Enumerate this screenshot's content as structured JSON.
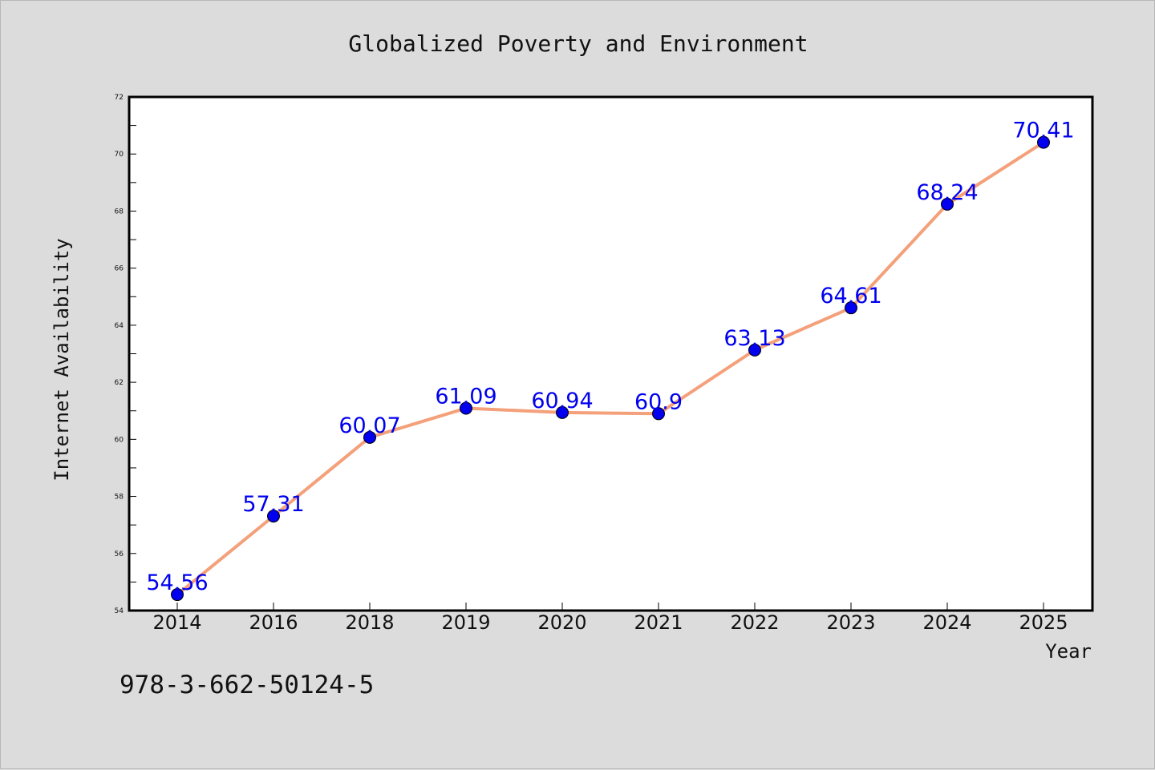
{
  "chart_data": {
    "type": "line",
    "title": "Globalized Poverty and Environment",
    "xlabel": "Year",
    "ylabel": "Internet Availability",
    "categories": [
      "2014",
      "2016",
      "2018",
      "2019",
      "2020",
      "2021",
      "2022",
      "2023",
      "2024",
      "2025"
    ],
    "series": [
      {
        "values": [
          54.56,
          57.31,
          60.07,
          61.09,
          60.94,
          60.9,
          63.13,
          64.61,
          68.24,
          70.41
        ],
        "labels": [
          "54.56",
          "57.31",
          "60.07",
          "61.09",
          "60.94",
          "60.9",
          "63.13",
          "64.61",
          "68.24",
          "70.41"
        ],
        "line_color": "#f4a07a",
        "marker_color": "#0000ee",
        "label_color": "#0000ee"
      }
    ],
    "ylim": [
      54,
      72
    ],
    "yticks": [
      54,
      56,
      58,
      60,
      62,
      64,
      66,
      68,
      70,
      72
    ],
    "ytick_labels": [
      "54",
      "56",
      "58",
      "60",
      "62",
      "64",
      "66",
      "68",
      "70",
      "72"
    ],
    "grid": false,
    "legend": "none"
  },
  "footer": {
    "isbn": "978-3-662-50124-5"
  }
}
